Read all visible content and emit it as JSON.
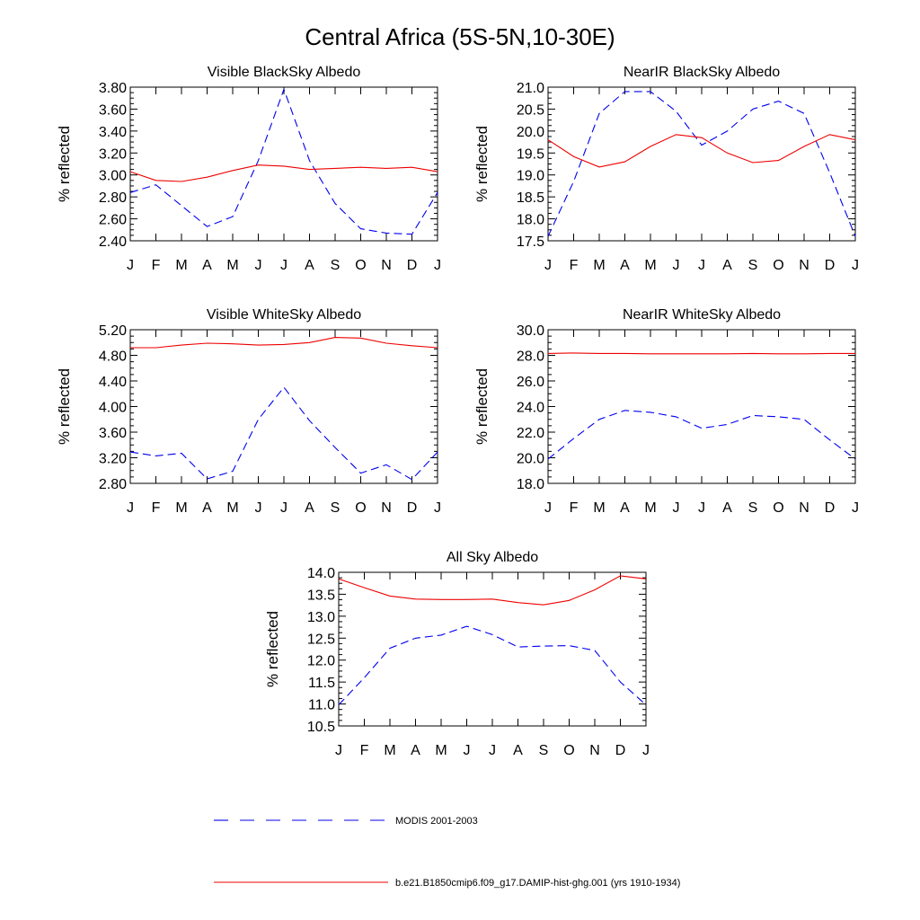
{
  "title": "Central Africa (5S-5N,10-30E)",
  "months": [
    "J",
    "F",
    "M",
    "A",
    "M",
    "J",
    "J",
    "A",
    "S",
    "O",
    "N",
    "D",
    "J"
  ],
  "colors": {
    "modis": "#0000ee",
    "model": "#ee0000"
  },
  "legend": [
    {
      "label": "MODIS 2001-2003",
      "style": "dashed",
      "color": "#0000ee"
    },
    {
      "label": "b.e21.B1850cmip6.f09_g17.DAMIP-hist-ghg.001 (yrs 1910-1934)",
      "style": "solid",
      "color": "#ee0000"
    }
  ],
  "chart_data": [
    {
      "type": "line",
      "title": "Visible BlackSky Albedo",
      "ylabel": "% reflected",
      "ylim": [
        2.4,
        3.8
      ],
      "yticks": [
        "2.40",
        "2.60",
        "2.80",
        "3.00",
        "3.20",
        "3.40",
        "3.60",
        "3.80"
      ],
      "x": [
        "J",
        "F",
        "M",
        "A",
        "M",
        "J",
        "J",
        "A",
        "S",
        "O",
        "N",
        "D",
        "J"
      ],
      "series": [
        {
          "key": "modis",
          "style": "dashed",
          "values": [
            2.84,
            2.91,
            2.72,
            2.53,
            2.62,
            3.13,
            3.78,
            3.13,
            2.74,
            2.51,
            2.47,
            2.46,
            2.84
          ]
        },
        {
          "key": "model",
          "style": "solid",
          "values": [
            3.03,
            2.95,
            2.94,
            2.98,
            3.04,
            3.09,
            3.08,
            3.05,
            3.06,
            3.07,
            3.06,
            3.07,
            3.03
          ]
        }
      ]
    },
    {
      "type": "line",
      "title": "NearIR BlackSky Albedo",
      "ylabel": "% reflected",
      "ylim": [
        17.5,
        21.0
      ],
      "yticks": [
        "17.5",
        "18.0",
        "18.5",
        "19.0",
        "19.5",
        "20.0",
        "20.5",
        "21.0"
      ],
      "x": [
        "J",
        "F",
        "M",
        "A",
        "M",
        "J",
        "J",
        "A",
        "S",
        "O",
        "N",
        "D",
        "J"
      ],
      "series": [
        {
          "key": "modis",
          "style": "dashed",
          "values": [
            17.6,
            18.85,
            20.4,
            20.9,
            20.9,
            20.45,
            19.68,
            20.0,
            20.5,
            20.68,
            20.4,
            19.05,
            17.6
          ]
        },
        {
          "key": "model",
          "style": "solid",
          "values": [
            19.8,
            19.42,
            19.18,
            19.3,
            19.65,
            19.92,
            19.85,
            19.5,
            19.28,
            19.33,
            19.65,
            19.92,
            19.8
          ]
        }
      ]
    },
    {
      "type": "line",
      "title": "Visible WhiteSky Albedo",
      "ylabel": "% reflected",
      "ylim": [
        2.8,
        5.2
      ],
      "yticks": [
        "2.80",
        "3.20",
        "3.60",
        "4.00",
        "4.40",
        "4.80",
        "5.20"
      ],
      "x": [
        "J",
        "F",
        "M",
        "A",
        "M",
        "J",
        "J",
        "A",
        "S",
        "O",
        "N",
        "D",
        "J"
      ],
      "series": [
        {
          "key": "modis",
          "style": "dashed",
          "values": [
            3.29,
            3.23,
            3.27,
            2.87,
            2.99,
            3.8,
            4.3,
            3.78,
            3.36,
            2.96,
            3.09,
            2.86,
            3.29
          ]
        },
        {
          "key": "model",
          "style": "solid",
          "values": [
            4.92,
            4.92,
            4.96,
            4.99,
            4.98,
            4.96,
            4.97,
            5.0,
            5.08,
            5.07,
            4.99,
            4.95,
            4.92
          ]
        }
      ]
    },
    {
      "type": "line",
      "title": "NearIR WhiteSky Albedo",
      "ylabel": "% reflected",
      "ylim": [
        18.0,
        30.0
      ],
      "yticks": [
        "18.0",
        "20.0",
        "22.0",
        "24.0",
        "26.0",
        "28.0",
        "30.0"
      ],
      "x": [
        "J",
        "F",
        "M",
        "A",
        "M",
        "J",
        "J",
        "A",
        "S",
        "O",
        "N",
        "D",
        "J"
      ],
      "series": [
        {
          "key": "modis",
          "style": "dashed",
          "values": [
            19.9,
            21.5,
            23.0,
            23.7,
            23.55,
            23.2,
            22.3,
            22.6,
            23.3,
            23.2,
            23.0,
            21.4,
            19.9
          ]
        },
        {
          "key": "model",
          "style": "solid",
          "values": [
            28.15,
            28.18,
            28.15,
            28.15,
            28.12,
            28.12,
            28.12,
            28.12,
            28.15,
            28.12,
            28.12,
            28.15,
            28.15
          ]
        }
      ]
    },
    {
      "type": "line",
      "title": "All Sky Albedo",
      "ylabel": "% reflected",
      "ylim": [
        10.5,
        14.0
      ],
      "yticks": [
        "10.5",
        "11.0",
        "11.5",
        "12.0",
        "12.5",
        "13.0",
        "13.5",
        "14.0"
      ],
      "x": [
        "J",
        "F",
        "M",
        "A",
        "M",
        "J",
        "J",
        "A",
        "S",
        "O",
        "N",
        "D",
        "J"
      ],
      "series": [
        {
          "key": "modis",
          "style": "dashed",
          "values": [
            10.98,
            11.6,
            12.27,
            12.5,
            12.57,
            12.77,
            12.58,
            12.3,
            12.32,
            12.33,
            12.22,
            11.5,
            10.98
          ]
        },
        {
          "key": "model",
          "style": "solid",
          "values": [
            13.85,
            13.65,
            13.46,
            13.39,
            13.38,
            13.38,
            13.39,
            13.31,
            13.26,
            13.36,
            13.6,
            13.92,
            13.85
          ]
        }
      ]
    }
  ]
}
